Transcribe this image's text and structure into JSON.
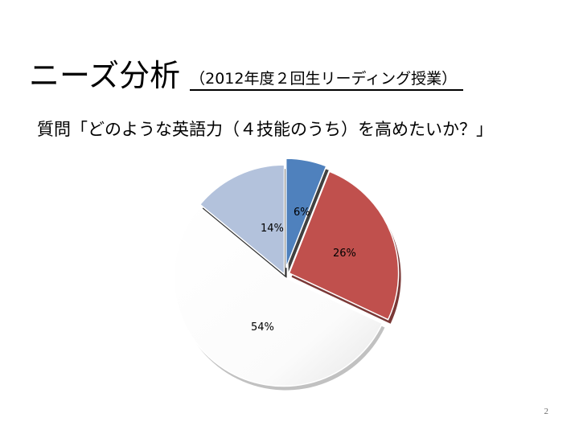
{
  "title": {
    "main": "ニーズ分析",
    "sub": "（2012年度２回生リーディング授業）"
  },
  "question": "質問「どのような英語力（４技能のうち）を高めたいか？」",
  "page_number": "2",
  "chart_data": {
    "type": "pie",
    "slices": [
      {
        "label": "6%",
        "value": 6,
        "color": "#4f81bd"
      },
      {
        "label": "26%",
        "value": 26,
        "color": "#c0504d"
      },
      {
        "label": "54%",
        "value": 54,
        "color": "#ffffff"
      },
      {
        "label": "14%",
        "value": 14,
        "color": "#b3c2dc"
      }
    ],
    "exploded": true,
    "legend": "none"
  }
}
